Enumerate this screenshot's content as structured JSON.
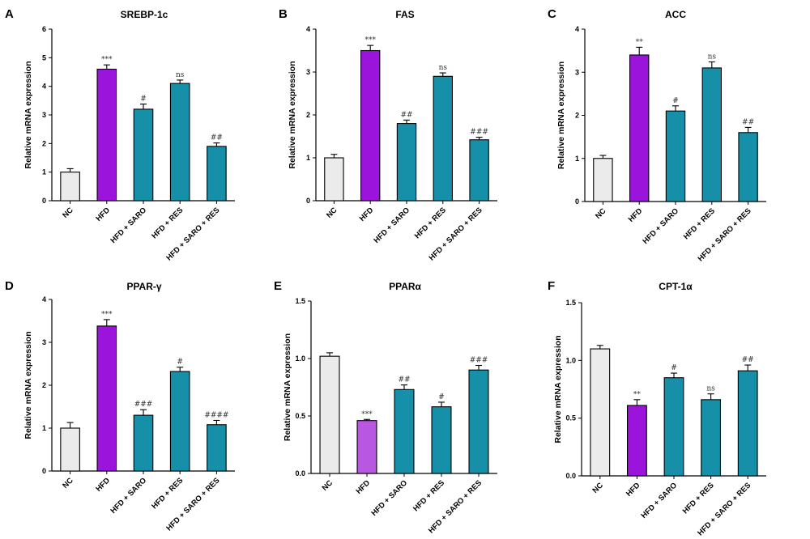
{
  "colors": {
    "NC": "#ebebeb",
    "HFD": "#9b14dc",
    "HFD_light": "#b857e0",
    "treat": "#1690a8",
    "axis": "#000000"
  },
  "chart_data": [
    {
      "letter": "A",
      "title": "SREBP-1c",
      "type": "bar",
      "ylabel": "Relative mRNA expression",
      "ylim": [
        0,
        6
      ],
      "yticks": [
        "0",
        "1",
        "2",
        "3",
        "4",
        "5",
        "6"
      ],
      "categories": [
        "NC",
        "HFD",
        "HFD + SARO",
        "HFD + RES",
        "HFD + SARO + RES"
      ],
      "values": [
        1.0,
        4.6,
        3.2,
        4.1,
        1.9
      ],
      "errors": [
        0.12,
        0.15,
        0.18,
        0.12,
        0.12
      ],
      "significance": [
        "",
        "***",
        "#",
        "ns",
        "##"
      ],
      "bar_colors": [
        "NC",
        "HFD",
        "treat",
        "treat",
        "treat"
      ]
    },
    {
      "letter": "B",
      "title": "FAS",
      "type": "bar",
      "ylabel": "Relative mRNA expression",
      "ylim": [
        0,
        4
      ],
      "yticks": [
        "0",
        "1",
        "2",
        "3",
        "4"
      ],
      "categories": [
        "NC",
        "HFD",
        "HFD + SARO",
        "HFD + RES",
        "HFD + SARO + RES"
      ],
      "values": [
        1.0,
        3.5,
        1.8,
        2.9,
        1.42
      ],
      "errors": [
        0.08,
        0.12,
        0.08,
        0.08,
        0.06
      ],
      "significance": [
        "",
        "***",
        "##",
        "ns",
        "###"
      ],
      "bar_colors": [
        "NC",
        "HFD",
        "treat",
        "treat",
        "treat"
      ]
    },
    {
      "letter": "C",
      "title": "ACC",
      "type": "bar",
      "ylabel": "Relative mRNA expression",
      "ylim": [
        0,
        4
      ],
      "yticks": [
        "0",
        "1",
        "2",
        "3",
        "4"
      ],
      "categories": [
        "NC",
        "HFD",
        "HFD + SARO",
        "HFD + RES",
        "HFD + SARO + RES"
      ],
      "values": [
        1.0,
        3.4,
        2.1,
        3.1,
        1.6
      ],
      "errors": [
        0.07,
        0.18,
        0.12,
        0.14,
        0.12
      ],
      "significance": [
        "",
        "**",
        "#",
        "ns",
        "##"
      ],
      "bar_colors": [
        "NC",
        "HFD",
        "treat",
        "treat",
        "treat"
      ]
    },
    {
      "letter": "D",
      "title": "PPAR-γ",
      "type": "bar",
      "ylabel": "Relative mRNA expression",
      "ylim": [
        0,
        4
      ],
      "yticks": [
        "0",
        "1",
        "2",
        "3",
        "4"
      ],
      "categories": [
        "NC",
        "HFD",
        "HFD + SARO",
        "HFD + RES",
        "HFD + SARO + RES"
      ],
      "values": [
        1.0,
        3.38,
        1.3,
        2.32,
        1.08
      ],
      "errors": [
        0.13,
        0.15,
        0.13,
        0.1,
        0.1
      ],
      "significance": [
        "",
        "***",
        "###",
        "#",
        "####"
      ],
      "bar_colors": [
        "NC",
        "HFD",
        "treat",
        "treat",
        "treat"
      ]
    },
    {
      "letter": "E",
      "title": "PPARα",
      "type": "bar",
      "ylabel": "Relative mRNA expression",
      "ylim": [
        0,
        1.5
      ],
      "yticks": [
        "0.0",
        "0.5",
        "1.0",
        "1.5"
      ],
      "categories": [
        "NC",
        "HFD",
        "HFD + SARO",
        "HFD + RES",
        "HFD + SARO + RES"
      ],
      "values": [
        1.02,
        0.46,
        0.73,
        0.58,
        0.9
      ],
      "errors": [
        0.03,
        0.01,
        0.04,
        0.04,
        0.04
      ],
      "significance": [
        "",
        "***",
        "##",
        "#",
        "###"
      ],
      "bar_colors": [
        "NC",
        "HFD_light",
        "treat",
        "treat",
        "treat"
      ]
    },
    {
      "letter": "F",
      "title": "CPT-1α",
      "type": "bar",
      "ylabel": "Relative mRNA expression",
      "ylim": [
        0,
        1.5
      ],
      "yticks": [
        "0.0",
        "0.5",
        "1.0",
        "1.5"
      ],
      "categories": [
        "NC",
        "HFD",
        "HFD + SARO",
        "HFD + RES",
        "HFD + SARO + RES"
      ],
      "values": [
        1.1,
        0.61,
        0.85,
        0.66,
        0.91
      ],
      "errors": [
        0.03,
        0.05,
        0.04,
        0.05,
        0.05
      ],
      "significance": [
        "",
        "**",
        "#",
        "ns",
        "##"
      ],
      "bar_colors": [
        "NC",
        "HFD",
        "treat",
        "treat",
        "treat"
      ]
    }
  ]
}
